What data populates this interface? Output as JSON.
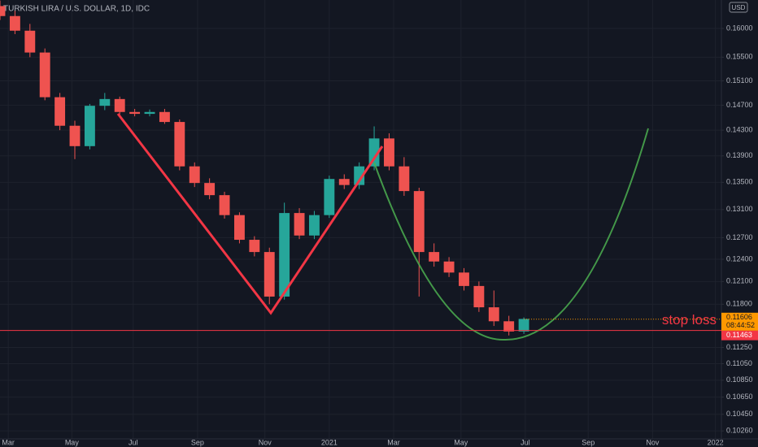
{
  "chart_data": {
    "type": "candlestick",
    "title": "TURKISH LIRA / U.S. DOLLAR, 1D, IDC",
    "currency": "USD",
    "log_scale": true,
    "grid": true,
    "up_color": "#26a69a",
    "down_color": "#ef5350",
    "x": [
      0,
      1,
      2,
      3,
      4,
      5,
      6,
      7,
      8,
      9,
      10,
      11,
      12,
      13,
      14,
      15,
      16,
      17,
      18,
      19,
      20,
      21,
      22,
      23,
      24,
      25,
      26,
      27,
      28,
      29,
      30,
      31,
      32,
      33,
      34,
      35
    ],
    "open": [
      0.164,
      0.1622,
      0.1596,
      0.1558,
      0.1483,
      0.1437,
      0.1405,
      0.1469,
      0.148,
      0.1459,
      0.1456,
      0.1459,
      0.1443,
      0.1374,
      0.1349,
      0.1331,
      0.1302,
      0.1267,
      0.125,
      0.119,
      0.1305,
      0.1273,
      0.1302,
      0.1355,
      0.1346,
      0.1374,
      0.1417,
      0.1374,
      0.1337,
      0.125,
      0.1237,
      0.1222,
      0.1204,
      0.1176,
      0.1158,
      0.1145
    ],
    "high": [
      0.165,
      0.1632,
      0.1608,
      0.1565,
      0.149,
      0.1445,
      0.1472,
      0.149,
      0.1484,
      0.1464,
      0.1463,
      0.1464,
      0.1447,
      0.138,
      0.1356,
      0.1336,
      0.1306,
      0.1272,
      0.1256,
      0.132,
      0.1312,
      0.1308,
      0.136,
      0.1362,
      0.138,
      0.1436,
      0.1425,
      0.1388,
      0.1342,
      0.1262,
      0.1243,
      0.1228,
      0.121,
      0.1198,
      0.1165,
      0.1163
    ],
    "low": [
      0.1615,
      0.159,
      0.155,
      0.1478,
      0.143,
      0.1385,
      0.14,
      0.1462,
      0.1455,
      0.1452,
      0.1452,
      0.144,
      0.1368,
      0.1343,
      0.1325,
      0.1297,
      0.1262,
      0.1244,
      0.118,
      0.1186,
      0.1268,
      0.1268,
      0.1298,
      0.134,
      0.134,
      0.1368,
      0.1368,
      0.133,
      0.119,
      0.123,
      0.1216,
      0.1198,
      0.117,
      0.1152,
      0.114,
      0.1142
    ],
    "close": [
      0.1622,
      0.1596,
      0.1558,
      0.1483,
      0.1437,
      0.1405,
      0.1469,
      0.148,
      0.1459,
      0.1456,
      0.1459,
      0.1443,
      0.1374,
      0.1349,
      0.1331,
      0.1302,
      0.1267,
      0.125,
      0.119,
      0.1305,
      0.1273,
      0.1302,
      0.1355,
      0.1346,
      0.1374,
      0.1417,
      0.1374,
      0.1337,
      0.125,
      0.1237,
      0.1222,
      0.1204,
      0.1176,
      0.1158,
      0.1145,
      0.1161
    ],
    "xlim": [
      0,
      48.2
    ],
    "xticks": [
      {
        "value": 0.55,
        "label": "Mar"
      },
      {
        "value": 4.8,
        "label": "May"
      },
      {
        "value": 8.9,
        "label": "Jul"
      },
      {
        "value": 13.2,
        "label": "Sep"
      },
      {
        "value": 17.7,
        "label": "Nov"
      },
      {
        "value": 22.0,
        "label": "2021"
      },
      {
        "value": 26.3,
        "label": "Mar"
      },
      {
        "value": 30.8,
        "label": "May"
      },
      {
        "value": 35.1,
        "label": "Jul"
      },
      {
        "value": 39.3,
        "label": "Sep"
      },
      {
        "value": 43.6,
        "label": "Nov"
      },
      {
        "value": 47.8,
        "label": "2022"
      }
    ],
    "ylim": [
      0.1017,
      0.1651
    ],
    "yticks": [
      {
        "value": 0.16,
        "label": "0.16000"
      },
      {
        "value": 0.155,
        "label": "0.15500"
      },
      {
        "value": 0.151,
        "label": "0.15100"
      },
      {
        "value": 0.147,
        "label": "0.14700"
      },
      {
        "value": 0.143,
        "label": "0.14300"
      },
      {
        "value": 0.139,
        "label": "0.13900"
      },
      {
        "value": 0.135,
        "label": "0.13500"
      },
      {
        "value": 0.131,
        "label": "0.13100"
      },
      {
        "value": 0.127,
        "label": "0.12700"
      },
      {
        "value": 0.124,
        "label": "0.12400"
      },
      {
        "value": 0.121,
        "label": "0.12100"
      },
      {
        "value": 0.118,
        "label": "0.11800"
      },
      {
        "value": 0.1125,
        "label": "0.11250"
      },
      {
        "value": 0.1105,
        "label": "0.11050"
      },
      {
        "value": 0.1085,
        "label": "0.10850"
      },
      {
        "value": 0.1065,
        "label": "0.10650"
      },
      {
        "value": 0.1045,
        "label": "0.10450"
      },
      {
        "value": 0.1026,
        "label": "0.10260"
      }
    ],
    "last_price": 0.11606,
    "countdown": "08:44:52",
    "stop_loss": {
      "label": "stop loss",
      "value": 0.11463
    }
  }
}
